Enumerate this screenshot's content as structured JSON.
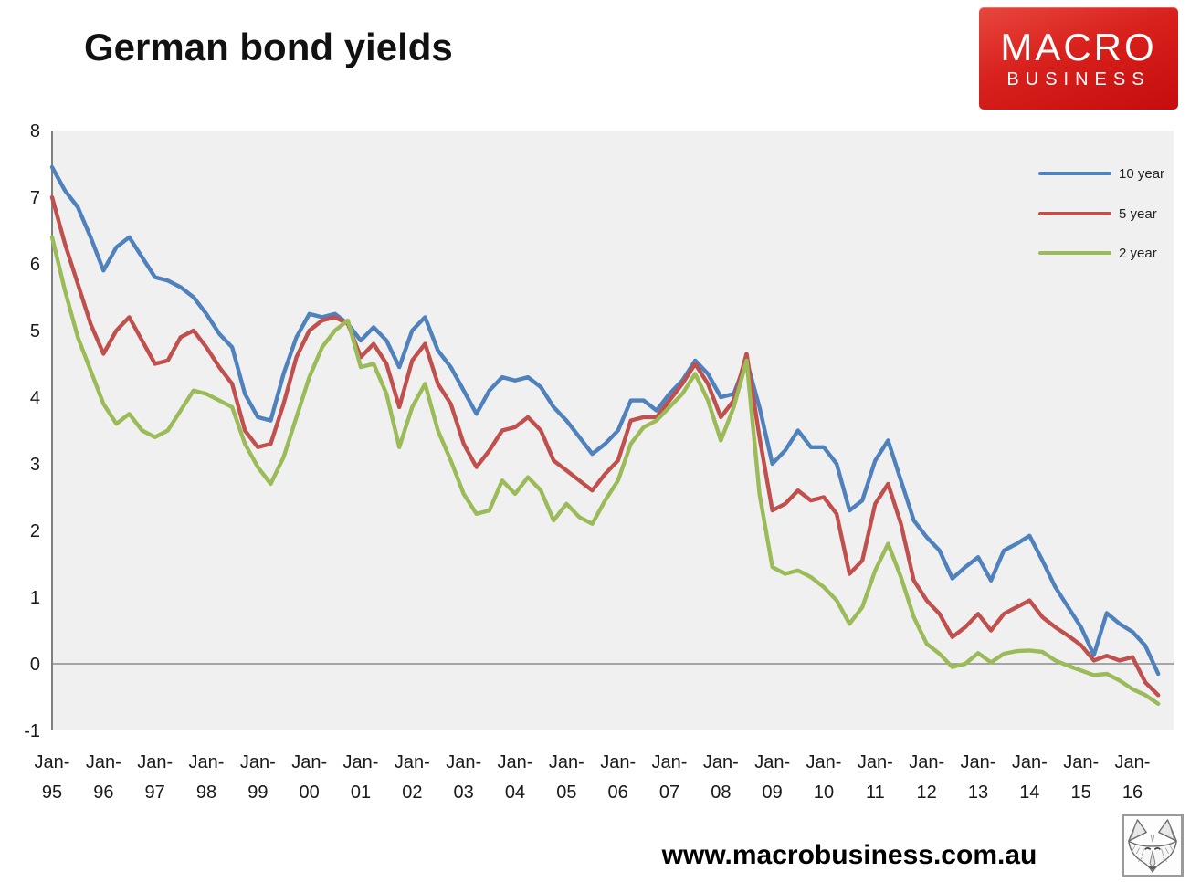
{
  "title": "German bond yields",
  "logo": {
    "line1": "MACRO",
    "line2": "BUSINESS"
  },
  "footer": {
    "url": "www.macrobusiness.com.au"
  },
  "colors": {
    "blue": "#4F81BD",
    "red": "#C0504D",
    "green": "#9BBB59",
    "plot_background": "#F0F0F0",
    "axis_line": "#7F7F7F",
    "zero_line": "#8C8C8C",
    "logo_red": "#D8201C"
  },
  "chart_data": {
    "type": "line",
    "title": "German bond yields",
    "xlabel": "",
    "ylabel": "",
    "grid": false,
    "legend_position": "top-right",
    "plot_bg": "#F0F0F0",
    "x_axis": {
      "start_year": 1995,
      "points_per_year": 4,
      "end": 2016.5,
      "tick_labels": [
        "Jan-95",
        "Jan-96",
        "Jan-97",
        "Jan-98",
        "Jan-99",
        "Jan-00",
        "Jan-01",
        "Jan-02",
        "Jan-03",
        "Jan-04",
        "Jan-05",
        "Jan-06",
        "Jan-07",
        "Jan-08",
        "Jan-09",
        "Jan-10",
        "Jan-11",
        "Jan-12",
        "Jan-13",
        "Jan-14",
        "Jan-15",
        "Jan-16"
      ]
    },
    "y_axis": {
      "min": -1,
      "max": 8,
      "ticks": [
        8,
        7,
        6,
        5,
        4,
        3,
        2,
        1,
        0,
        -1
      ],
      "zero_line": true
    },
    "series": [
      {
        "name": "10 year",
        "color": "#4F81BD",
        "values": [
          7.45,
          7.1,
          6.85,
          6.4,
          5.9,
          6.25,
          6.4,
          6.1,
          5.8,
          5.75,
          5.65,
          5.5,
          5.25,
          4.95,
          4.75,
          4.05,
          3.7,
          3.65,
          4.35,
          4.9,
          5.25,
          5.2,
          5.25,
          5.1,
          4.85,
          5.05,
          4.85,
          4.45,
          5.0,
          5.2,
          4.7,
          4.45,
          4.1,
          3.75,
          4.1,
          4.3,
          4.25,
          4.3,
          4.15,
          3.85,
          3.65,
          3.4,
          3.15,
          3.3,
          3.5,
          3.95,
          3.95,
          3.8,
          4.05,
          4.25,
          4.55,
          4.35,
          4.0,
          4.05,
          4.55,
          3.85,
          3.0,
          3.2,
          3.5,
          3.25,
          3.25,
          3.0,
          2.3,
          2.45,
          3.05,
          3.35,
          2.75,
          2.15,
          1.9,
          1.7,
          1.28,
          1.45,
          1.6,
          1.25,
          1.7,
          1.8,
          1.92,
          1.55,
          1.15,
          0.85,
          0.55,
          0.13,
          0.76,
          0.6,
          0.48,
          0.27,
          -0.15
        ]
      },
      {
        "name": "5 year",
        "color": "#C0504D",
        "values": [
          7.0,
          6.3,
          5.7,
          5.1,
          4.65,
          5.0,
          5.2,
          4.85,
          4.5,
          4.55,
          4.9,
          5.0,
          4.75,
          4.45,
          4.2,
          3.5,
          3.25,
          3.3,
          3.9,
          4.6,
          5.0,
          5.15,
          5.2,
          5.1,
          4.6,
          4.8,
          4.5,
          3.85,
          4.55,
          4.8,
          4.2,
          3.9,
          3.3,
          2.95,
          3.2,
          3.5,
          3.55,
          3.7,
          3.5,
          3.05,
          2.9,
          2.75,
          2.6,
          2.85,
          3.05,
          3.65,
          3.7,
          3.7,
          3.95,
          4.2,
          4.5,
          4.2,
          3.7,
          3.95,
          4.65,
          3.4,
          2.3,
          2.4,
          2.6,
          2.45,
          2.5,
          2.25,
          1.35,
          1.55,
          2.4,
          2.7,
          2.1,
          1.25,
          0.95,
          0.75,
          0.4,
          0.55,
          0.75,
          0.5,
          0.75,
          0.85,
          0.95,
          0.7,
          0.55,
          0.42,
          0.28,
          0.05,
          0.12,
          0.05,
          0.1,
          -0.28,
          -0.47
        ]
      },
      {
        "name": "2 year",
        "color": "#9BBB59",
        "values": [
          6.4,
          5.6,
          4.9,
          4.4,
          3.9,
          3.6,
          3.75,
          3.5,
          3.4,
          3.5,
          3.8,
          4.1,
          4.05,
          3.95,
          3.85,
          3.3,
          2.95,
          2.7,
          3.1,
          3.7,
          4.3,
          4.75,
          5.0,
          5.15,
          4.45,
          4.5,
          4.05,
          3.25,
          3.85,
          4.2,
          3.5,
          3.05,
          2.55,
          2.25,
          2.3,
          2.75,
          2.55,
          2.8,
          2.6,
          2.15,
          2.4,
          2.2,
          2.1,
          2.45,
          2.75,
          3.3,
          3.55,
          3.65,
          3.85,
          4.05,
          4.35,
          3.95,
          3.35,
          3.85,
          4.55,
          2.55,
          1.45,
          1.35,
          1.4,
          1.3,
          1.15,
          0.95,
          0.6,
          0.85,
          1.4,
          1.8,
          1.3,
          0.7,
          0.3,
          0.15,
          -0.05,
          0.0,
          0.16,
          0.02,
          0.15,
          0.19,
          0.2,
          0.18,
          0.05,
          -0.03,
          -0.1,
          -0.17,
          -0.15,
          -0.25,
          -0.38,
          -0.47,
          -0.6
        ]
      }
    ]
  }
}
